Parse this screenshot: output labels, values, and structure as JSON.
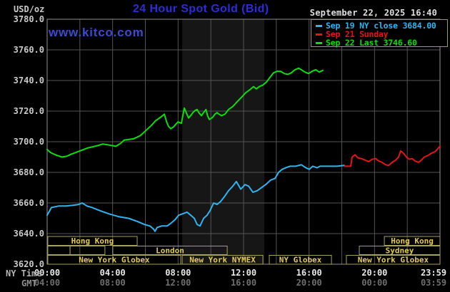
{
  "header": {
    "unit_label": "USD/oz",
    "title": "24 Hour Spot Gold (Bid)",
    "watermark": "www.kitco.com",
    "datetime": "September 22, 2025 16:40"
  },
  "legend": {
    "entries": [
      {
        "id": "sep19",
        "label": "Sep 19 NY close 3684.00",
        "color": "#2fb4f0"
      },
      {
        "id": "sep21",
        "label": "Sep 21 Sunday",
        "color": "#e51515"
      },
      {
        "id": "sep22",
        "label": "Sep 22 Last 3746.60",
        "color": "#0ddd0d"
      }
    ]
  },
  "axes": {
    "ny_caption": "NY Time",
    "gmt_caption": "GMT"
  },
  "colors": {
    "background": "#000000",
    "title_blue": "#2c2cdc",
    "watermark_blue": "#3b4bd3",
    "grid": "#545454",
    "border": "#8f8f8f",
    "band": "#161616",
    "session_outline": "#a6a258",
    "session_label": "#e3cb4e",
    "cyan_line": "#2fb4f0",
    "red_line": "#e51515",
    "green_line": "#0ddd0d"
  },
  "chart_data": {
    "type": "line",
    "title": "24 Hour Spot Gold (Bid)",
    "ylabel": "USD/oz",
    "ylim": [
      3620,
      3780
    ],
    "y_ticks": [
      3780,
      3760,
      3740,
      3720,
      3700,
      3680,
      3660,
      3640,
      3620
    ],
    "x_ticks": [
      {
        "h": 0,
        "ny": "00:00",
        "gmt": "04:00"
      },
      {
        "h": 4,
        "ny": "04:00",
        "gmt": "08:00"
      },
      {
        "h": 8,
        "ny": "08:00",
        "gmt": "12:00"
      },
      {
        "h": 12,
        "ny": "12:00",
        "gmt": "16:00"
      },
      {
        "h": 16,
        "ny": "16:00",
        "gmt": "20:00"
      },
      {
        "h": 20,
        "ny": "20:00",
        "gmt": "00:00"
      },
      {
        "h": 23.983,
        "ny": "23:59",
        "gmt": "03:59"
      }
    ],
    "grid_step_hours": 2,
    "highlight_band": {
      "start_h": 8.25,
      "end_h": 13.27,
      "note": "New York NYMEX session"
    },
    "series": [
      {
        "name": "Sep 19 NY close",
        "close": 3684.0,
        "color_key": "cyan_line",
        "points": [
          [
            0,
            3652
          ],
          [
            0.26,
            3657
          ],
          [
            0.7,
            3658
          ],
          [
            1.13,
            3658
          ],
          [
            1.57,
            3658.5
          ],
          [
            1.92,
            3659
          ],
          [
            2.14,
            3660
          ],
          [
            2.44,
            3658
          ],
          [
            2.75,
            3657
          ],
          [
            3.23,
            3655
          ],
          [
            3.75,
            3653
          ],
          [
            4.41,
            3651
          ],
          [
            4.97,
            3650
          ],
          [
            5.5,
            3648
          ],
          [
            5.93,
            3646
          ],
          [
            6.28,
            3645
          ],
          [
            6.5,
            3643
          ],
          [
            6.59,
            3641.5
          ],
          [
            6.72,
            3644
          ],
          [
            6.98,
            3645
          ],
          [
            7.33,
            3645
          ],
          [
            7.59,
            3647
          ],
          [
            7.81,
            3649
          ],
          [
            8.03,
            3652
          ],
          [
            8.29,
            3653
          ],
          [
            8.55,
            3654
          ],
          [
            8.77,
            3652
          ],
          [
            8.99,
            3650
          ],
          [
            9.16,
            3646
          ],
          [
            9.34,
            3645
          ],
          [
            9.56,
            3650
          ],
          [
            9.77,
            3652
          ],
          [
            9.95,
            3655
          ],
          [
            10.17,
            3660
          ],
          [
            10.38,
            3659
          ],
          [
            10.6,
            3661
          ],
          [
            10.82,
            3664
          ],
          [
            11.08,
            3668
          ],
          [
            11.34,
            3671
          ],
          [
            11.56,
            3674
          ],
          [
            11.83,
            3669
          ],
          [
            12.09,
            3672
          ],
          [
            12.31,
            3671
          ],
          [
            12.57,
            3667
          ],
          [
            12.83,
            3668
          ],
          [
            13.09,
            3670
          ],
          [
            13.35,
            3672
          ],
          [
            13.66,
            3675
          ],
          [
            13.92,
            3676
          ],
          [
            14.14,
            3680
          ],
          [
            14.36,
            3682
          ],
          [
            14.58,
            3683
          ],
          [
            14.84,
            3684
          ],
          [
            15.19,
            3684
          ],
          [
            15.53,
            3685
          ],
          [
            15.8,
            3683
          ],
          [
            16.01,
            3682
          ],
          [
            16.23,
            3684
          ],
          [
            16.49,
            3683
          ],
          [
            16.67,
            3684
          ],
          [
            16.97,
            3684
          ],
          [
            17.32,
            3684
          ],
          [
            17.72,
            3684
          ],
          [
            18.15,
            3684.5
          ]
        ]
      },
      {
        "name": "Sep 21 Sunday",
        "color_key": "red_line",
        "points": [
          [
            18.15,
            3684
          ],
          [
            18.55,
            3684
          ],
          [
            18.63,
            3690
          ],
          [
            18.81,
            3691.5
          ],
          [
            18.98,
            3689.5
          ],
          [
            19.2,
            3689
          ],
          [
            19.42,
            3688
          ],
          [
            19.64,
            3687
          ],
          [
            19.85,
            3688.5
          ],
          [
            20.07,
            3689
          ],
          [
            20.25,
            3687.5
          ],
          [
            20.46,
            3686.5
          ],
          [
            20.68,
            3685
          ],
          [
            20.86,
            3684.5
          ],
          [
            21.08,
            3686.5
          ],
          [
            21.29,
            3688
          ],
          [
            21.47,
            3690
          ],
          [
            21.6,
            3694
          ],
          [
            21.77,
            3692.5
          ],
          [
            21.95,
            3690
          ],
          [
            22.12,
            3688.5
          ],
          [
            22.3,
            3689
          ],
          [
            22.47,
            3687.5
          ],
          [
            22.69,
            3686.5
          ],
          [
            22.86,
            3688
          ],
          [
            23.04,
            3690
          ],
          [
            23.26,
            3691
          ],
          [
            23.48,
            3692.5
          ],
          [
            23.7,
            3693.5
          ],
          [
            23.87,
            3695.5
          ],
          [
            24,
            3697
          ]
        ]
      },
      {
        "name": "Sep 22 Last",
        "last": 3746.6,
        "color_key": "green_line",
        "points": [
          [
            0,
            3695
          ],
          [
            0.2,
            3693
          ],
          [
            0.5,
            3691.5
          ],
          [
            0.9,
            3690
          ],
          [
            1.2,
            3690.5
          ],
          [
            1.5,
            3692
          ],
          [
            2,
            3694
          ],
          [
            2.5,
            3696
          ],
          [
            3.1,
            3697.5
          ],
          [
            3.4,
            3698.5
          ],
          [
            3.7,
            3698
          ],
          [
            4.2,
            3697
          ],
          [
            4.5,
            3699
          ],
          [
            4.7,
            3701
          ],
          [
            5,
            3701.5
          ],
          [
            5.3,
            3702
          ],
          [
            5.7,
            3704
          ],
          [
            6.1,
            3708
          ],
          [
            6.4,
            3711
          ],
          [
            6.6,
            3713.5
          ],
          [
            7,
            3716.5
          ],
          [
            7.16,
            3718
          ],
          [
            7.3,
            3713
          ],
          [
            7.42,
            3710
          ],
          [
            7.55,
            3708.5
          ],
          [
            7.7,
            3709.5
          ],
          [
            8,
            3713
          ],
          [
            8.2,
            3712
          ],
          [
            8.38,
            3722
          ],
          [
            8.5,
            3719
          ],
          [
            8.64,
            3715.5
          ],
          [
            8.8,
            3717.5
          ],
          [
            8.9,
            3719
          ],
          [
            9.05,
            3720.5
          ],
          [
            9.16,
            3721
          ],
          [
            9.3,
            3718.5
          ],
          [
            9.43,
            3717
          ],
          [
            9.55,
            3719
          ],
          [
            9.7,
            3721
          ],
          [
            9.8,
            3717
          ],
          [
            9.91,
            3714.5
          ],
          [
            10.05,
            3715.5
          ],
          [
            10.12,
            3716
          ],
          [
            10.25,
            3718
          ],
          [
            10.38,
            3719
          ],
          [
            10.5,
            3718
          ],
          [
            10.65,
            3717
          ],
          [
            10.86,
            3718
          ],
          [
            11.08,
            3721
          ],
          [
            11.34,
            3723
          ],
          [
            11.6,
            3726
          ],
          [
            11.87,
            3729
          ],
          [
            12.13,
            3732
          ],
          [
            12.39,
            3734
          ],
          [
            12.61,
            3736
          ],
          [
            12.78,
            3734.5
          ],
          [
            12.96,
            3736
          ],
          [
            13.18,
            3737
          ],
          [
            13.4,
            3739
          ],
          [
            13.61,
            3742
          ],
          [
            13.83,
            3745
          ],
          [
            14.05,
            3746
          ],
          [
            14.27,
            3746
          ],
          [
            14.49,
            3744.5
          ],
          [
            14.7,
            3744
          ],
          [
            14.92,
            3745
          ],
          [
            15.14,
            3747
          ],
          [
            15.36,
            3748
          ],
          [
            15.53,
            3747
          ],
          [
            15.75,
            3745.5
          ],
          [
            15.97,
            3744.5
          ],
          [
            16.19,
            3746
          ],
          [
            16.41,
            3747
          ],
          [
            16.62,
            3745.5
          ],
          [
            16.84,
            3746.6
          ]
        ]
      }
    ],
    "sessions": [
      {
        "row": 1,
        "start_h": 0.04,
        "end_h": 5.5,
        "label": "Hong Kong"
      },
      {
        "row": 1,
        "start_h": 20.6,
        "end_h": 24,
        "label": "Hong Kong"
      },
      {
        "row": 2,
        "start_h": 0.04,
        "end_h": 1.4,
        "label": ""
      },
      {
        "row": 2,
        "start_h": 1.4,
        "end_h": 3.53,
        "label": ""
      },
      {
        "row": 2,
        "start_h": 4.01,
        "end_h": 11.0,
        "label": "London"
      },
      {
        "row": 2,
        "start_h": 19.07,
        "end_h": 24,
        "label": "Sydney"
      },
      {
        "row": 3,
        "start_h": 0.04,
        "end_h": 8.16,
        "label": "New York Globex"
      },
      {
        "row": 3,
        "start_h": 8.25,
        "end_h": 13.18,
        "label": "New York NYMEX"
      },
      {
        "row": 3,
        "start_h": 13.57,
        "end_h": 17.37,
        "label": "NY Globex"
      },
      {
        "row": 3,
        "start_h": 18.28,
        "end_h": 24,
        "label": "New York Globex"
      }
    ]
  }
}
